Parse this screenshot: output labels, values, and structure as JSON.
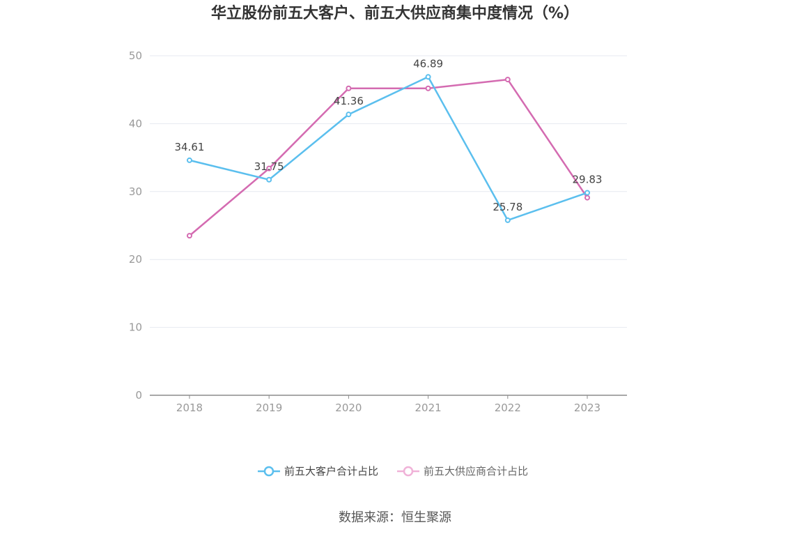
{
  "chart_data": {
    "type": "line",
    "title": "华立股份前五大客户、前五大供应商集中度情况（%）",
    "x": [
      "2018",
      "2019",
      "2020",
      "2021",
      "2022",
      "2023"
    ],
    "ylim": [
      0,
      50
    ],
    "yticks": [
      "0",
      "10",
      "20",
      "30",
      "40",
      "50"
    ],
    "grid": true,
    "legend_position": "bottom",
    "series": [
      {
        "name": "前五大客户合计占比",
        "color": "#5bbfee",
        "values": [
          34.61,
          31.75,
          41.36,
          46.89,
          25.78,
          29.83
        ],
        "labels": [
          "34.61",
          "31.75",
          "41.36",
          "46.89",
          "25.78",
          "29.83"
        ]
      },
      {
        "name": "前五大供应商合计占比",
        "color": "#d46bb1",
        "legend_color": "#f0b2d8",
        "values": [
          23.5,
          33.4,
          45.2,
          45.2,
          46.5,
          29.1
        ]
      }
    ],
    "source": "数据来源：恒生聚源"
  }
}
